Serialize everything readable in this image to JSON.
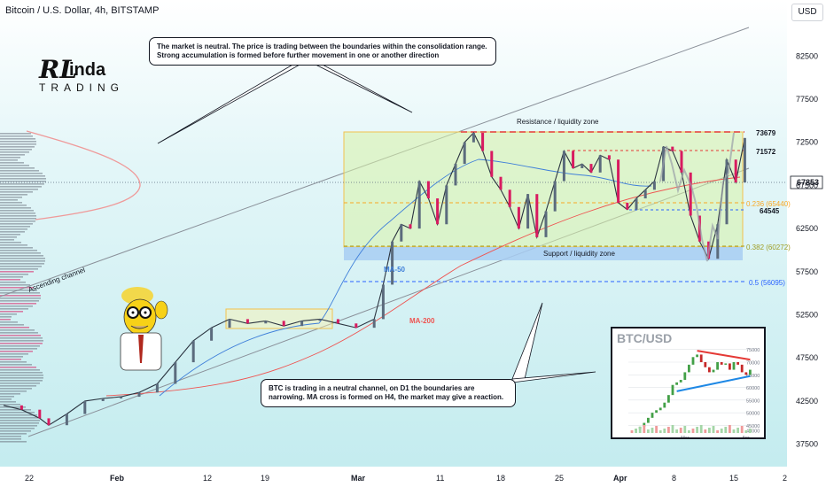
{
  "header": {
    "title": "Bitcoin / U.S. Dollar, 4h, BITSTAMP",
    "currency": "USD"
  },
  "logo": {
    "text_big": "RL",
    "text_word": "inda",
    "text_sub": "TRADING"
  },
  "callouts": {
    "top": "The market is neutral. The price is trading between the boundaries within the consolidation range. Strong accumulation is formed before further movement in one or another direction",
    "bottom": "BTC is trading in a neutral channel, on D1 the boundaries are narrowing. MA cross is formed on H4, the market may give a reaction."
  },
  "chart_data": {
    "type": "line",
    "symbol": "BTCUSD",
    "timeframe": "4h",
    "x_tick_labels": [
      "22",
      "Feb",
      "12",
      "19",
      "Mar",
      "11",
      "18",
      "25",
      "Apr",
      "8",
      "15",
      "2"
    ],
    "y_tick_labels": [
      "82500",
      "77500",
      "72500",
      "67500",
      "62500",
      "57500",
      "52500",
      "47500",
      "42500",
      "37500"
    ],
    "ylim": [
      35000,
      87000
    ],
    "x_index_range": [
      0,
      100
    ],
    "series": [
      {
        "name": "price",
        "x": [
          0,
          2,
          4,
          5,
          7,
          9,
          11,
          13,
          15,
          17,
          19,
          21,
          23,
          25,
          27,
          29,
          31,
          33,
          35,
          37,
          39,
          41,
          42,
          43,
          44,
          45,
          46,
          47,
          48,
          49,
          50,
          51,
          52,
          53,
          54,
          55,
          56,
          57,
          58,
          59,
          60,
          61,
          62,
          63,
          64,
          65,
          66,
          67,
          68,
          69,
          70,
          71,
          72,
          73,
          74,
          75,
          76,
          77,
          78,
          79,
          80,
          81,
          82
        ],
        "values": [
          42000,
          41500,
          40500,
          39700,
          41000,
          42500,
          42800,
          43000,
          43500,
          44500,
          47000,
          49500,
          51000,
          52000,
          51500,
          51800,
          51200,
          51800,
          52000,
          51500,
          51000,
          52000,
          56000,
          61000,
          63000,
          62500,
          68000,
          66000,
          63000,
          67500,
          70000,
          72500,
          73600,
          71500,
          68500,
          67000,
          65000,
          62500,
          66500,
          61500,
          64500,
          68000,
          71500,
          69500,
          70000,
          69000,
          71000,
          70500,
          65500,
          64700,
          66000,
          67000,
          68000,
          72000,
          71500,
          69000,
          64000,
          61000,
          59000,
          63000,
          70500,
          67850,
          73000
        ]
      }
    ],
    "levels": [
      {
        "label": "73679",
        "value": 73679,
        "color": "#e53935"
      },
      {
        "label": "71572",
        "value": 71572,
        "color": "#e53935"
      },
      {
        "label": "64545",
        "value": 64545,
        "color": "#2962ff"
      },
      {
        "label": "0.236 (65440)",
        "value": 65440,
        "color": "#f9a825"
      },
      {
        "label": "0.382 (60272)",
        "value": 60272,
        "color": "#9e9d24"
      },
      {
        "label": "0.5 (56095)",
        "value": 56095,
        "color": "#2962ff"
      }
    ],
    "current_price": {
      "label": "67853",
      "value": 67853
    },
    "annotations": {
      "resistance": "Resistance / liquidity zone",
      "support": "Support / liquidity zone",
      "ascending": "Ascending channel",
      "ma50": "MA-50",
      "ma200": "MA-200"
    },
    "colors": {
      "bull": "#5b6b7d",
      "bear": "#d81b60",
      "ma50": "#3f7fd9",
      "ma200": "#ef5350",
      "resistance": "#e53935",
      "support_zone": "#a7cdf2",
      "range_box": "#ffd54f"
    }
  },
  "inset": {
    "title": "BTC/USD",
    "tick_labels": [
      "75000",
      "70000",
      "65000",
      "60000",
      "55000",
      "50000",
      "45000",
      "43000"
    ],
    "x_labels": [
      "Mar",
      "Apr"
    ],
    "chart_data": {
      "type": "line",
      "x": [
        0,
        1,
        2,
        3,
        4,
        5,
        6,
        7,
        8,
        9,
        10,
        11,
        12,
        13,
        14,
        15,
        16,
        17,
        18,
        19,
        20,
        21,
        22,
        23,
        24,
        25,
        26,
        27,
        28,
        29
      ],
      "values": [
        43000,
        43500,
        44500,
        46000,
        48000,
        50000,
        51000,
        52000,
        54000,
        57000,
        61000,
        62000,
        63000,
        66000,
        69000,
        72000,
        73000,
        70000,
        68000,
        66000,
        67000,
        70000,
        69000,
        69500,
        67000,
        70000,
        69000,
        66000,
        65000,
        67000
      ],
      "ylim": [
        42000,
        77000
      ]
    }
  }
}
